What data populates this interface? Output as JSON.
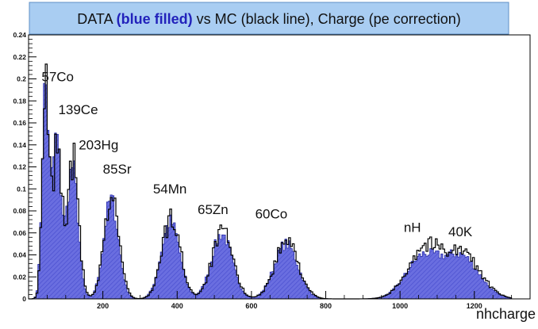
{
  "chart_data": {
    "type": "histogram",
    "title": {
      "pre": "DATA ",
      "highlight": "(blue filled)",
      "post": " vs MC (black line), Charge (pe correction)"
    },
    "xlabel": "nhcharge",
    "ylabel": "",
    "xlim": [
      0,
      1350
    ],
    "ylim": [
      0,
      0.24
    ],
    "x_ticks": [
      {
        "value": 200,
        "label": "200"
      },
      {
        "value": 400,
        "label": "400"
      },
      {
        "value": 600,
        "label": "600"
      },
      {
        "value": 800,
        "label": "800"
      },
      {
        "value": 1000,
        "label": "1000"
      },
      {
        "value": 1200,
        "label": "1200"
      }
    ],
    "y_ticks": [
      {
        "value": 0,
        "label": "0"
      },
      {
        "value": 0.02,
        "label": "0.02"
      },
      {
        "value": 0.04,
        "label": "0.04"
      },
      {
        "value": 0.06,
        "label": "0.06"
      },
      {
        "value": 0.08,
        "label": "0.08"
      },
      {
        "value": 0.1,
        "label": "0.1"
      },
      {
        "value": 0.12,
        "label": "0.12"
      },
      {
        "value": 0.14,
        "label": "0.14"
      },
      {
        "value": 0.16,
        "label": "0.16"
      },
      {
        "value": 0.18,
        "label": "0.18"
      },
      {
        "value": 0.2,
        "label": "0.2"
      },
      {
        "value": 0.22,
        "label": "0.22"
      },
      {
        "value": 0.24,
        "label": "0.24"
      }
    ],
    "grid": false,
    "legend": "none",
    "colors": {
      "data_fill": "#6a6ee0",
      "data_edge": "#2b2fa8",
      "mc_line": "#000000",
      "title_box": "#a9cdf2",
      "title_highlight": "#2222bb"
    },
    "series": [
      {
        "name": "DATA",
        "style": "blue filled",
        "peaks": [
          {
            "label": "57Co",
            "mean": 45,
            "sigma": 9,
            "height": 0.19
          },
          {
            "label": "139Ce",
            "mean": 75,
            "sigma": 12,
            "height": 0.145
          },
          {
            "label": "203Hg",
            "mean": 118,
            "sigma": 15,
            "height": 0.12
          },
          {
            "label": "85Sr",
            "mean": 222,
            "sigma": 20,
            "height": 0.09
          },
          {
            "label": "54Mn",
            "mean": 382,
            "sigma": 25,
            "height": 0.07
          },
          {
            "label": "65Zn",
            "mean": 520,
            "sigma": 28,
            "height": 0.059
          },
          {
            "label": "60Co",
            "mean": 693,
            "sigma": 32,
            "height": 0.05
          },
          {
            "label": "nH",
            "mean": 1060,
            "sigma": 45,
            "height": 0.037
          },
          {
            "label": "40K",
            "mean": 1165,
            "sigma": 48,
            "height": 0.038
          }
        ]
      },
      {
        "name": "MC",
        "style": "black line",
        "peaks": [
          {
            "label": "57Co",
            "mean": 46,
            "sigma": 9,
            "height": 0.185
          },
          {
            "label": "139Ce",
            "mean": 77,
            "sigma": 12,
            "height": 0.14
          },
          {
            "label": "203Hg",
            "mean": 120,
            "sigma": 15,
            "height": 0.125
          },
          {
            "label": "85Sr",
            "mean": 224,
            "sigma": 20,
            "height": 0.093
          },
          {
            "label": "54Mn",
            "mean": 384,
            "sigma": 25,
            "height": 0.072
          },
          {
            "label": "65Zn",
            "mean": 522,
            "sigma": 28,
            "height": 0.06
          },
          {
            "label": "60Co",
            "mean": 695,
            "sigma": 32,
            "height": 0.052
          },
          {
            "label": "nH",
            "mean": 1065,
            "sigma": 45,
            "height": 0.045
          },
          {
            "label": "40K",
            "mean": 1168,
            "sigma": 48,
            "height": 0.04
          }
        ]
      }
    ],
    "annotations": [
      {
        "text": "57Co",
        "x": 35,
        "y": 0.198
      },
      {
        "text": "139Ce",
        "x": 80,
        "y": 0.168
      },
      {
        "text": "203Hg",
        "x": 135,
        "y": 0.136
      },
      {
        "text": "85Sr",
        "x": 200,
        "y": 0.114
      },
      {
        "text": "54Mn",
        "x": 335,
        "y": 0.096
      },
      {
        "text": "65Zn",
        "x": 455,
        "y": 0.077
      },
      {
        "text": "60Co",
        "x": 610,
        "y": 0.073
      },
      {
        "text": "nH",
        "x": 1010,
        "y": 0.061
      },
      {
        "text": "40K",
        "x": 1130,
        "y": 0.057
      }
    ]
  }
}
